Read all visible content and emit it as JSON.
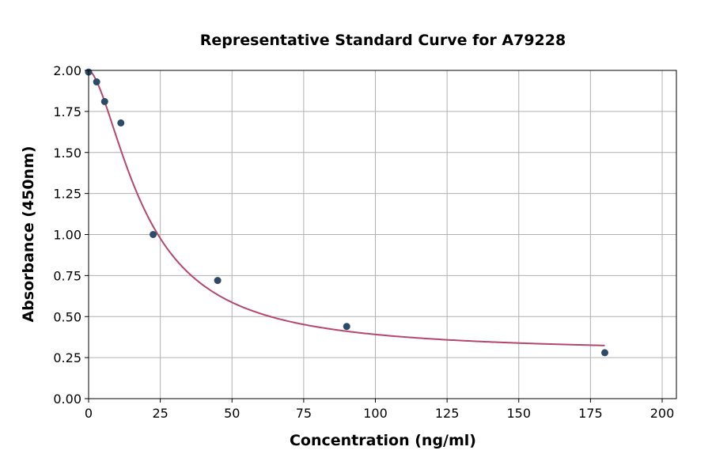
{
  "chart_data": {
    "type": "scatter",
    "title": "Representative Standard Curve for A79228",
    "xlabel": "Concentration (ng/ml)",
    "ylabel": "Absorbance (450nm)",
    "xlim": [
      0,
      205
    ],
    "ylim": [
      0,
      2.0
    ],
    "xticks": [
      0,
      25,
      50,
      75,
      100,
      125,
      150,
      175,
      200
    ],
    "yticks": [
      0.0,
      0.25,
      0.5,
      0.75,
      1.0,
      1.25,
      1.5,
      1.75,
      2.0
    ],
    "xtick_labels": [
      "0",
      "25",
      "50",
      "75",
      "100",
      "125",
      "150",
      "175",
      "200"
    ],
    "ytick_labels": [
      "0.00",
      "0.25",
      "0.50",
      "0.75",
      "1.00",
      "1.25",
      "1.50",
      "1.75",
      "2.00"
    ],
    "grid": true,
    "points": {
      "x": [
        0,
        2.8,
        5.6,
        11.25,
        22.5,
        45,
        90,
        180
      ],
      "y": [
        1.99,
        1.93,
        1.81,
        1.68,
        1.0,
        0.72,
        0.44,
        0.28
      ],
      "color": "#2e4a6b"
    },
    "fit_curve": {
      "model": "4PL",
      "top": 2.0,
      "bottom": 0.28,
      "ec50": 19.8,
      "hill": 1.65,
      "x_range": [
        0,
        180
      ],
      "color": "#b5476b"
    }
  }
}
